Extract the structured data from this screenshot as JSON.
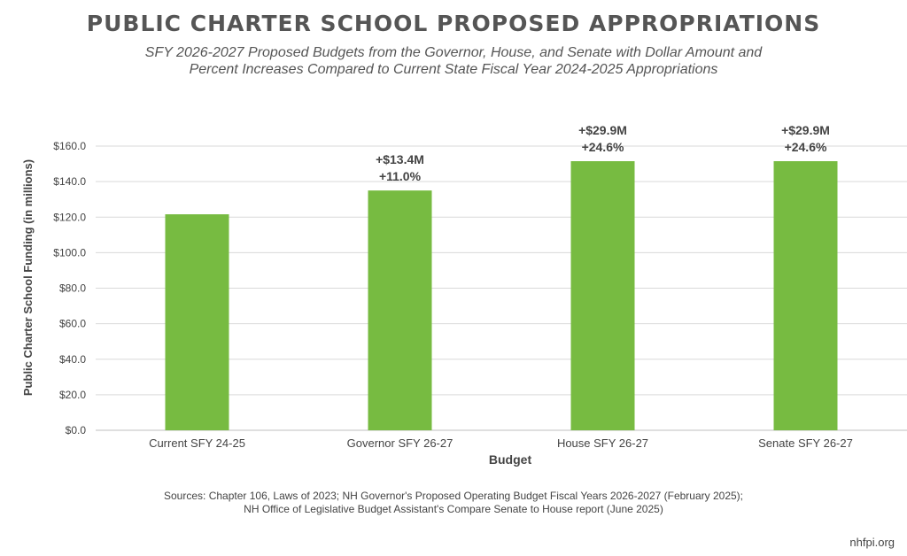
{
  "title": "PUBLIC CHARTER SCHOOL PROPOSED APPROPRIATIONS",
  "subtitle_lines": [
    "SFY 2026-2027 Proposed Budgets from the Governor, House, and Senate with Dollar Amount and",
    "Percent Increases Compared to Current State Fiscal Year 2024-2025 Appropriations"
  ],
  "sources_lines": [
    "Sources: Chapter 106, Laws of 2023; NH Governor's Proposed Operating Budget Fiscal Years 2026-2027 (February 2025);",
    "NH Office of Legislative Budget Assistant's Compare Senate to House report (June 2025)"
  ],
  "site": "nhfpi.org",
  "colors": {
    "bar": "#77bb41",
    "grid": "#d9d9d9",
    "text": "#444444"
  },
  "chart_data": {
    "type": "bar",
    "categories": [
      "Current SFY 24-25",
      "Governor SFY 26-27",
      "House SFY 26-27",
      "Senate SFY 26-27"
    ],
    "values": [
      121.6,
      135.0,
      151.5,
      151.5
    ],
    "annotations": [
      [],
      [
        "+$13.4M",
        "+11.0%"
      ],
      [
        "+$29.9M",
        "+24.6%"
      ],
      [
        "+$29.9M",
        "+24.6%"
      ]
    ],
    "xlabel": "Budget",
    "ylabel": "Public Charter School Funding  (in millions)",
    "ylim": [
      0,
      160
    ],
    "yticks": [
      0,
      20,
      40,
      60,
      80,
      100,
      120,
      140,
      160
    ],
    "ytick_labels": [
      "$0.0",
      "$20.0",
      "$40.0",
      "$60.0",
      "$80.0",
      "$100.0",
      "$120.0",
      "$140.0",
      "$160.0"
    ],
    "grid": true
  }
}
